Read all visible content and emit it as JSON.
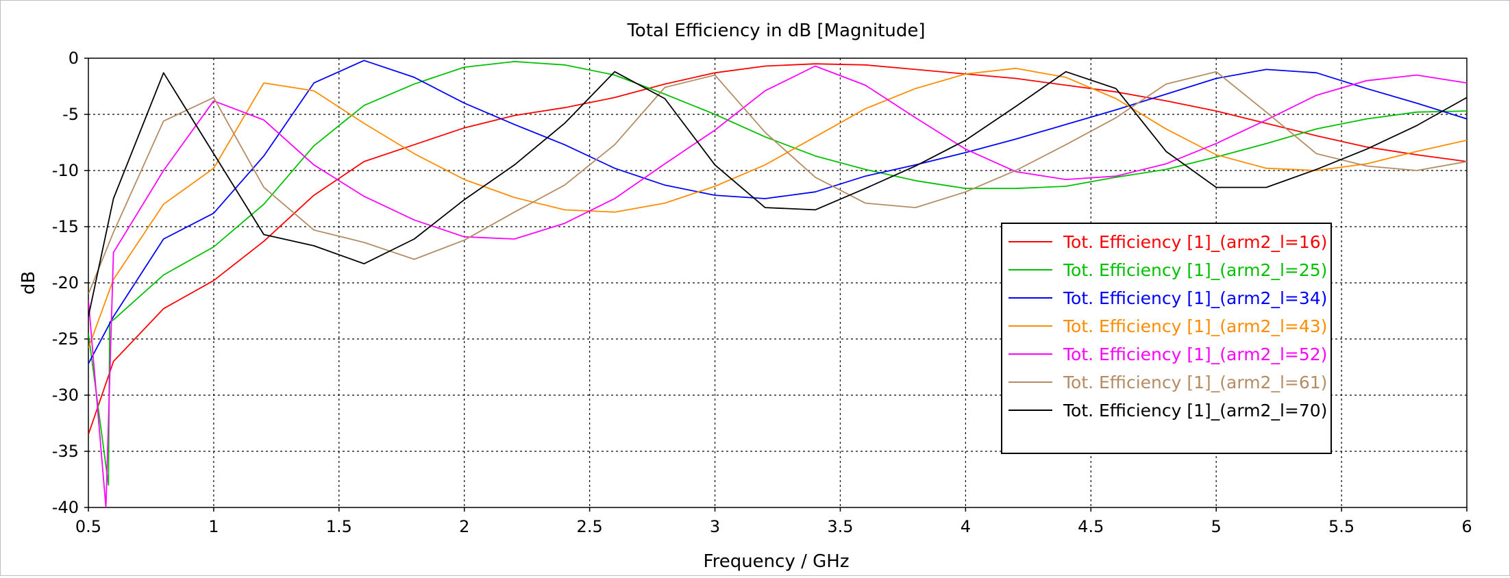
{
  "chart_data": {
    "type": "line",
    "title": "Total Efficiency in dB [Magnitude]",
    "xlabel": "Frequency / GHz",
    "ylabel": "dB",
    "xlim": [
      0.5,
      6
    ],
    "ylim": [
      -40,
      0
    ],
    "xticks": [
      0.5,
      1,
      1.5,
      2,
      2.5,
      3,
      3.5,
      4,
      4.5,
      5,
      5.5,
      6
    ],
    "xtick_labels": [
      "0.5",
      "1",
      "1.5",
      "2",
      "2.5",
      "3",
      "3.5",
      "4",
      "4.5",
      "5",
      "5.5",
      "6"
    ],
    "yticks": [
      0,
      -5,
      -10,
      -15,
      -20,
      -25,
      -30,
      -35,
      -40
    ],
    "ytick_labels": [
      "0",
      "-5",
      "-10",
      "-15",
      "-20",
      "-25",
      "-30",
      "-35",
      "-40"
    ],
    "grid": true,
    "legend_position": "right-center",
    "series": [
      {
        "name": "Tot. Efficiency [1]_(arm2_l=16)",
        "color": "#ff0000",
        "x": [
          0.5,
          0.6,
          0.8,
          1.0,
          1.2,
          1.4,
          1.6,
          1.8,
          2.0,
          2.2,
          2.4,
          2.6,
          2.8,
          3.0,
          3.2,
          3.4,
          3.6,
          3.8,
          4.0,
          4.2,
          4.4,
          4.6,
          4.8,
          5.0,
          5.2,
          5.4,
          5.6,
          5.8,
          6.0
        ],
        "y": [
          -33.5,
          -27.0,
          -22.3,
          -19.8,
          -16.3,
          -12.2,
          -9.2,
          -7.7,
          -6.2,
          -5.1,
          -4.4,
          -3.5,
          -2.3,
          -1.3,
          -0.7,
          -0.5,
          -0.6,
          -1.0,
          -1.4,
          -1.8,
          -2.4,
          -3.0,
          -3.8,
          -4.7,
          -5.8,
          -6.9,
          -7.9,
          -8.6,
          -9.2
        ]
      },
      {
        "name": "Tot. Efficiency [1]_(arm2_l=25)",
        "color": "#00c000",
        "x": [
          0.5,
          0.58,
          0.585,
          0.6,
          0.8,
          1.0,
          1.2,
          1.4,
          1.6,
          1.8,
          2.0,
          2.2,
          2.4,
          2.6,
          2.8,
          3.0,
          3.2,
          3.4,
          3.6,
          3.8,
          4.0,
          4.2,
          4.4,
          4.6,
          4.8,
          5.0,
          5.2,
          5.4,
          5.6,
          5.8,
          6.0
        ],
        "y": [
          -24.5,
          -38.0,
          -23.5,
          -23.3,
          -19.3,
          -16.8,
          -13.0,
          -7.8,
          -4.2,
          -2.3,
          -0.8,
          -0.3,
          -0.6,
          -1.5,
          -3.2,
          -5.0,
          -7.0,
          -8.7,
          -9.9,
          -10.9,
          -11.6,
          -11.6,
          -11.4,
          -10.6,
          -9.9,
          -8.8,
          -7.6,
          -6.3,
          -5.4,
          -4.8,
          -4.7
        ]
      },
      {
        "name": "Tot. Efficiency [1]_(arm2_l=34)",
        "color": "#0000ff",
        "x": [
          0.5,
          0.6,
          0.8,
          1.0,
          1.2,
          1.4,
          1.6,
          1.8,
          2.0,
          2.2,
          2.4,
          2.6,
          2.8,
          3.0,
          3.2,
          3.4,
          3.6,
          3.8,
          4.0,
          4.2,
          4.4,
          4.6,
          4.8,
          5.0,
          5.2,
          5.4,
          5.6,
          5.8,
          6.0
        ],
        "y": [
          -27.2,
          -23.0,
          -16.1,
          -13.8,
          -8.7,
          -2.2,
          -0.2,
          -1.7,
          -4.0,
          -5.9,
          -7.7,
          -9.8,
          -11.3,
          -12.2,
          -12.5,
          -11.9,
          -10.5,
          -9.5,
          -8.4,
          -7.2,
          -5.9,
          -4.6,
          -3.2,
          -1.8,
          -1.0,
          -1.3,
          -2.7,
          -4.0,
          -5.4
        ]
      },
      {
        "name": "Tot. Efficiency [1]_(arm2_l=43)",
        "color": "#ff8c00",
        "x": [
          0.5,
          0.6,
          0.8,
          1.0,
          1.2,
          1.4,
          1.6,
          1.8,
          2.0,
          2.2,
          2.4,
          2.6,
          2.8,
          3.0,
          3.2,
          3.4,
          3.6,
          3.8,
          4.0,
          4.2,
          4.4,
          4.6,
          4.8,
          5.0,
          5.2,
          5.4,
          5.6,
          5.8,
          6.0
        ],
        "y": [
          -25.8,
          -19.7,
          -13.0,
          -9.8,
          -2.2,
          -2.9,
          -5.8,
          -8.5,
          -10.8,
          -12.4,
          -13.5,
          -13.7,
          -12.9,
          -11.4,
          -9.5,
          -7.0,
          -4.5,
          -2.7,
          -1.4,
          -0.9,
          -1.7,
          -3.6,
          -6.3,
          -8.6,
          -9.8,
          -10.0,
          -9.4,
          -8.3,
          -7.3
        ]
      },
      {
        "name": "Tot. Efficiency [1]_(arm2_l=52)",
        "color": "#ff00ff",
        "x": [
          0.5,
          0.57,
          0.6,
          0.8,
          1.0,
          1.2,
          1.4,
          1.6,
          1.8,
          2.0,
          2.2,
          2.4,
          2.6,
          2.8,
          3.0,
          3.2,
          3.4,
          3.6,
          3.8,
          4.0,
          4.2,
          4.4,
          4.6,
          4.8,
          5.0,
          5.2,
          5.4,
          5.6,
          5.8,
          6.0
        ],
        "y": [
          -21.5,
          -40.0,
          -17.3,
          -10.0,
          -3.8,
          -5.5,
          -9.5,
          -12.3,
          -14.4,
          -15.9,
          -16.1,
          -14.7,
          -12.5,
          -9.4,
          -6.4,
          -2.9,
          -0.7,
          -2.4,
          -5.3,
          -8.1,
          -10.1,
          -10.8,
          -10.5,
          -9.4,
          -7.6,
          -5.5,
          -3.3,
          -2.0,
          -1.5,
          -2.2
        ]
      },
      {
        "name": "Tot. Efficiency [1]_(arm2_l=61)",
        "color": "#b48c64",
        "x": [
          0.5,
          0.6,
          0.8,
          1.0,
          1.2,
          1.4,
          1.6,
          1.8,
          2.0,
          2.2,
          2.4,
          2.6,
          2.8,
          3.0,
          3.2,
          3.4,
          3.6,
          3.8,
          4.0,
          4.2,
          4.4,
          4.6,
          4.8,
          5.0,
          5.2,
          5.4,
          5.6,
          5.8,
          6.0
        ],
        "y": [
          -21.0,
          -15.5,
          -5.6,
          -3.5,
          -11.5,
          -15.3,
          -16.4,
          -17.9,
          -16.2,
          -13.7,
          -11.3,
          -7.7,
          -2.6,
          -1.5,
          -6.6,
          -10.6,
          -12.9,
          -13.3,
          -11.9,
          -10.0,
          -7.7,
          -5.3,
          -2.3,
          -1.2,
          -4.8,
          -8.5,
          -9.6,
          -10.0,
          -9.2
        ]
      },
      {
        "name": "Tot. Efficiency [1]_(arm2_l=70)",
        "color": "#000000",
        "x": [
          0.5,
          0.6,
          0.8,
          1.0,
          1.2,
          1.4,
          1.6,
          1.8,
          2.0,
          2.2,
          2.4,
          2.6,
          2.8,
          3.0,
          3.2,
          3.4,
          3.6,
          3.8,
          4.0,
          4.2,
          4.4,
          4.6,
          4.8,
          5.0,
          5.2,
          5.4,
          5.6,
          5.8,
          6.0
        ],
        "y": [
          -23.0,
          -12.5,
          -1.3,
          -8.5,
          -15.7,
          -16.7,
          -18.3,
          -16.1,
          -12.6,
          -9.5,
          -5.8,
          -1.2,
          -3.6,
          -9.5,
          -13.3,
          -13.5,
          -11.6,
          -9.6,
          -7.3,
          -4.3,
          -1.2,
          -2.7,
          -8.3,
          -11.5,
          -11.5,
          -9.9,
          -8.1,
          -6.0,
          -3.5
        ]
      }
    ]
  }
}
